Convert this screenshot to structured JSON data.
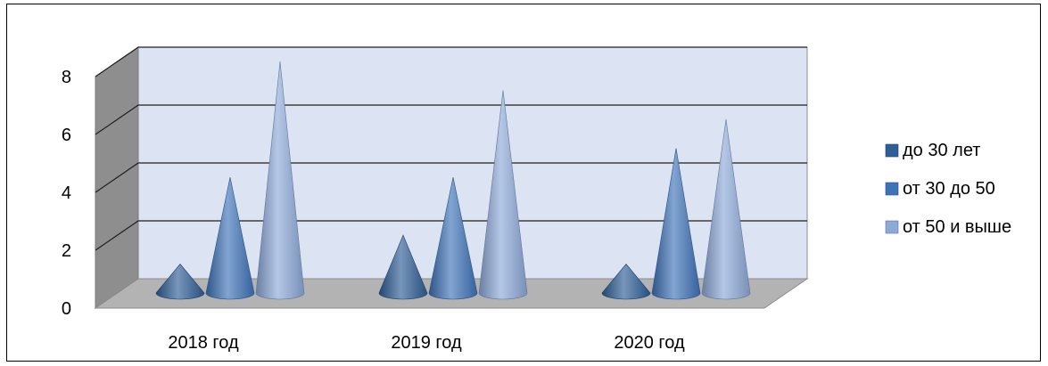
{
  "chart_data": {
    "type": "bar",
    "subtype": "3d-cone",
    "categories": [
      "2018 год",
      "2019 год",
      "2020 год"
    ],
    "series": [
      {
        "name": "до 30 лет",
        "values": [
          1,
          2,
          1
        ],
        "color": "#2f5e97"
      },
      {
        "name": "от 30 до 50",
        "values": [
          4,
          4,
          5
        ],
        "color": "#3f73b8"
      },
      {
        "name": "от 50 и выше",
        "values": [
          8,
          7,
          6
        ],
        "color": "#8da9d8"
      }
    ],
    "y_ticks": [
      "0",
      "2",
      "4",
      "6",
      "8"
    ],
    "ylim": [
      0,
      8
    ],
    "grid": true,
    "legend_position": "right",
    "title": "",
    "xlabel": "",
    "ylabel": ""
  }
}
